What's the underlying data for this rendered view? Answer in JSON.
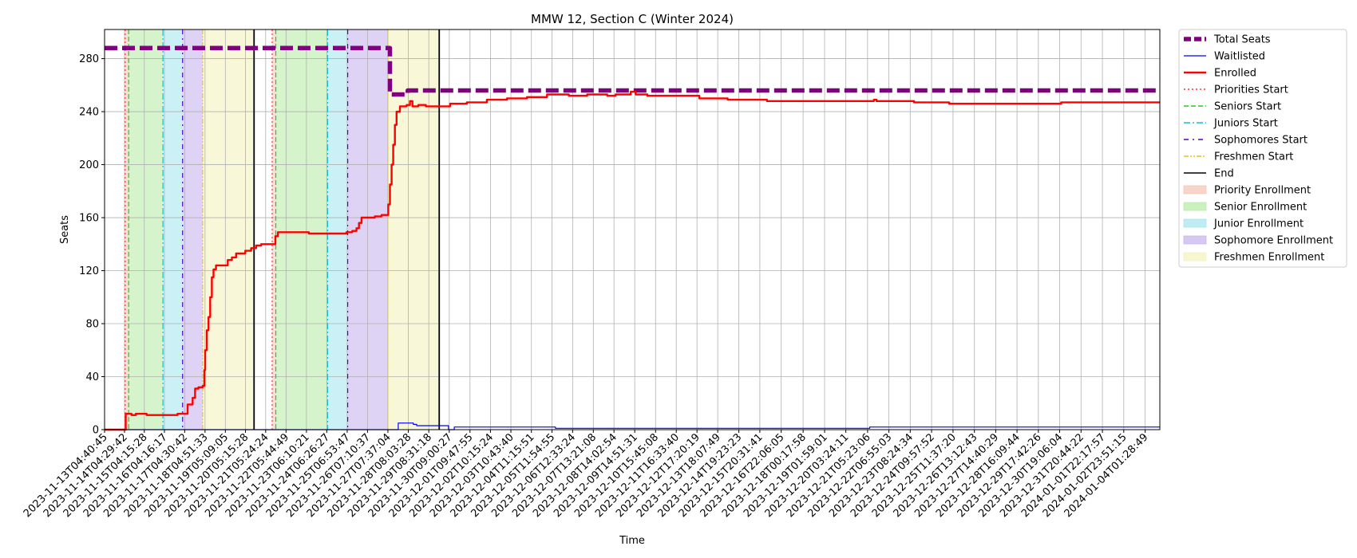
{
  "chart_data": {
    "type": "line",
    "title": "MMW 12, Section C (Winter 2024)",
    "xlabel": "Time",
    "ylabel": "Seats",
    "ylim": [
      0,
      302
    ],
    "yticks": [
      0,
      40,
      80,
      120,
      160,
      200,
      240,
      280
    ],
    "grid": true,
    "legend_position": "outside right, top",
    "x_start": "2023-11-13T04:40:45",
    "x_end": "2024-01-04T19:00:00",
    "xticks": [
      "2023-11-13T04:40:45",
      "2023-11-14T04:29:42",
      "2023-11-15T04:15:28",
      "2023-11-16T04:16:17",
      "2023-11-17T04:30:42",
      "2023-11-18T04:51:33",
      "2023-11-19T05:09:05",
      "2023-11-20T05:15:28",
      "2023-11-21T05:24:24",
      "2023-11-22T05:44:49",
      "2023-11-23T06:10:21",
      "2023-11-24T06:26:27",
      "2023-11-25T06:53:47",
      "2023-11-26T07:10:37",
      "2023-11-27T07:37:04",
      "2023-11-28T08:03:28",
      "2023-11-29T08:31:18",
      "2023-11-30T09:00:27",
      "2023-12-01T09:47:55",
      "2023-12-02T10:15:24",
      "2023-12-03T10:43:40",
      "2023-12-04T11:15:51",
      "2023-12-05T11:54:55",
      "2023-12-06T12:33:24",
      "2023-12-07T13:21:08",
      "2023-12-08T14:02:54",
      "2023-12-09T14:51:31",
      "2023-12-10T15:45:08",
      "2023-12-11T16:33:40",
      "2023-12-12T17:20:19",
      "2023-12-13T18:07:49",
      "2023-12-14T19:23:23",
      "2023-12-15T20:31:41",
      "2023-12-16T22:06:05",
      "2023-12-18T00:17:58",
      "2023-12-19T01:59:01",
      "2023-12-20T03:24:11",
      "2023-12-21T05:23:06",
      "2023-12-22T06:55:03",
      "2023-12-23T08:24:34",
      "2023-12-24T09:57:52",
      "2023-12-25T11:37:20",
      "2023-12-26T13:12:43",
      "2023-12-27T14:40:29",
      "2023-12-28T16:09:44",
      "2023-12-29T17:42:26",
      "2023-12-30T19:06:04",
      "2023-12-31T20:44:22",
      "2024-01-01T22:17:57",
      "2024-01-02T23:51:15",
      "2024-01-04T01:28:49"
    ],
    "enrollment_periods": [
      {
        "name": "Priority Enrollment",
        "color": "#f4c7b8",
        "start": "2023-11-14T05:20:00",
        "end": "2023-11-14T09:30:00"
      },
      {
        "name": "Senior Enrollment",
        "color": "#b9ecaa",
        "start": "2023-11-14T09:30:00",
        "end": "2023-11-16T02:30:00"
      },
      {
        "name": "Junior Enrollment",
        "color": "#a8e6ee",
        "start": "2023-11-16T02:30:00",
        "end": "2023-11-17T02:00:00"
      },
      {
        "name": "Sophomore Enrollment",
        "color": "#cab5ee",
        "start": "2023-11-17T02:00:00",
        "end": "2023-11-18T02:00:00"
      },
      {
        "name": "Freshmen Enrollment",
        "color": "#f3f3bf",
        "start": "2023-11-18T02:00:00",
        "end": "2023-11-20T15:30:00"
      },
      {
        "name": "Priority Enrollment",
        "color": "#f4c7b8",
        "start": "2023-11-21T13:10:00",
        "end": "2023-11-21T17:30:00"
      },
      {
        "name": "Senior Enrollment",
        "color": "#b9ecaa",
        "start": "2023-11-21T17:30:00",
        "end": "2023-11-24T07:30:00"
      },
      {
        "name": "Junior Enrollment",
        "color": "#a8e6ee",
        "start": "2023-11-24T07:30:00",
        "end": "2023-11-25T07:30:00"
      },
      {
        "name": "Sophomore Enrollment",
        "color": "#cab5ee",
        "start": "2023-11-25T07:30:00",
        "end": "2023-11-27T07:30:00"
      },
      {
        "name": "Freshmen Enrollment",
        "color": "#f3f3bf",
        "start": "2023-11-27T07:30:00",
        "end": "2023-11-29T21:00:00"
      }
    ],
    "markers": [
      {
        "kind": "priorities",
        "time": "2023-11-14T05:20:00"
      },
      {
        "kind": "seniors",
        "time": "2023-11-14T09:30:00"
      },
      {
        "kind": "juniors",
        "time": "2023-11-16T02:30:00"
      },
      {
        "kind": "sophomores",
        "time": "2023-11-17T02:00:00"
      },
      {
        "kind": "freshmen",
        "time": "2023-11-18T02:00:00"
      },
      {
        "kind": "end",
        "time": "2023-11-20T15:30:00"
      },
      {
        "kind": "priorities",
        "time": "2023-11-21T13:10:00"
      },
      {
        "kind": "seniors",
        "time": "2023-11-21T17:30:00"
      },
      {
        "kind": "juniors",
        "time": "2023-11-24T07:30:00"
      },
      {
        "kind": "sophomores",
        "time": "2023-11-25T07:30:00"
      },
      {
        "kind": "freshmen",
        "time": "2023-11-27T07:30:00"
      },
      {
        "kind": "end",
        "time": "2023-11-29T21:00:00"
      }
    ],
    "series": [
      {
        "name": "Total Seats",
        "key": "total",
        "color": "#800080",
        "style": "dashed-thick",
        "points": [
          [
            "2023-11-13T04:40:45",
            288
          ],
          [
            "2023-11-27T07:30:00",
            288
          ],
          [
            "2023-11-27T10:00:00",
            253
          ],
          [
            "2023-11-28T07:00:00",
            253
          ],
          [
            "2023-11-28T07:20:00",
            256
          ],
          [
            "2024-01-04T19:00:00",
            256
          ]
        ]
      },
      {
        "name": "Waitlisted",
        "key": "waitlisted",
        "color": "#0000ff",
        "style": "thin",
        "points": [
          [
            "2023-11-13T04:40:45",
            0
          ],
          [
            "2023-11-27T15:00:00",
            0
          ],
          [
            "2023-11-27T20:00:00",
            5
          ],
          [
            "2023-11-28T14:00:00",
            4
          ],
          [
            "2023-11-28T18:00:00",
            3
          ],
          [
            "2023-11-30T07:00:00",
            3
          ],
          [
            "2023-11-30T08:00:00",
            0
          ],
          [
            "2023-11-30T15:00:00",
            2
          ],
          [
            "2023-12-05T13:00:00",
            2
          ],
          [
            "2023-12-05T16:00:00",
            1
          ],
          [
            "2023-12-21T05:00:00",
            1
          ],
          [
            "2023-12-21T08:00:00",
            2
          ],
          [
            "2024-01-04T19:00:00",
            2
          ]
        ]
      },
      {
        "name": "Enrolled",
        "key": "enrolled",
        "color": "#ff0000",
        "style": "thick",
        "points": [
          [
            "2023-11-13T04:40:45",
            0
          ],
          [
            "2023-11-14T02:00:00",
            0
          ],
          [
            "2023-11-14T06:00:00",
            12
          ],
          [
            "2023-11-14T13:00:00",
            11
          ],
          [
            "2023-11-14T18:00:00",
            12
          ],
          [
            "2023-11-15T05:00:00",
            12
          ],
          [
            "2023-11-15T07:00:00",
            11
          ],
          [
            "2023-11-16T17:00:00",
            11
          ],
          [
            "2023-11-16T20:00:00",
            12
          ],
          [
            "2023-11-17T04:00:00",
            12
          ],
          [
            "2023-11-17T08:00:00",
            19
          ],
          [
            "2023-11-17T14:00:00",
            24
          ],
          [
            "2023-11-17T17:00:00",
            31
          ],
          [
            "2023-11-17T21:00:00",
            32
          ],
          [
            "2023-11-18T02:00:00",
            33
          ],
          [
            "2023-11-18T04:00:00",
            45
          ],
          [
            "2023-11-18T05:00:00",
            60
          ],
          [
            "2023-11-18T07:00:00",
            75
          ],
          [
            "2023-11-18T09:00:00",
            85
          ],
          [
            "2023-11-18T11:00:00",
            100
          ],
          [
            "2023-11-18T13:00:00",
            115
          ],
          [
            "2023-11-18T15:00:00",
            121
          ],
          [
            "2023-11-18T18:00:00",
            124
          ],
          [
            "2023-11-19T05:00:00",
            124
          ],
          [
            "2023-11-19T08:00:00",
            128
          ],
          [
            "2023-11-19T13:00:00",
            130
          ],
          [
            "2023-11-19T18:00:00",
            133
          ],
          [
            "2023-11-20T05:00:00",
            135
          ],
          [
            "2023-11-20T12:00:00",
            137
          ],
          [
            "2023-11-20T18:00:00",
            139
          ],
          [
            "2023-11-21T00:00:00",
            140
          ],
          [
            "2023-11-21T14:00:00",
            140
          ],
          [
            "2023-11-21T17:00:00",
            146
          ],
          [
            "2023-11-21T20:00:00",
            149
          ],
          [
            "2023-11-23T06:00:00",
            149
          ],
          [
            "2023-11-23T09:00:00",
            148
          ],
          [
            "2023-11-25T00:00:00",
            148
          ],
          [
            "2023-11-25T06:00:00",
            149
          ],
          [
            "2023-11-25T13:00:00",
            150
          ],
          [
            "2023-11-25T18:00:00",
            152
          ],
          [
            "2023-11-25T21:00:00",
            156
          ],
          [
            "2023-11-26T00:00:00",
            160
          ],
          [
            "2023-11-26T12:00:00",
            160
          ],
          [
            "2023-11-26T16:00:00",
            161
          ],
          [
            "2023-11-27T00:00:00",
            162
          ],
          [
            "2023-11-27T06:00:00",
            162
          ],
          [
            "2023-11-27T08:00:00",
            170
          ],
          [
            "2023-11-27T10:00:00",
            185
          ],
          [
            "2023-11-27T12:00:00",
            200
          ],
          [
            "2023-11-27T14:00:00",
            215
          ],
          [
            "2023-11-27T16:00:00",
            230
          ],
          [
            "2023-11-27T18:00:00",
            240
          ],
          [
            "2023-11-27T22:00:00",
            244
          ],
          [
            "2023-11-28T06:00:00",
            245
          ],
          [
            "2023-11-28T10:00:00",
            248
          ],
          [
            "2023-11-28T13:00:00",
            244
          ],
          [
            "2023-11-28T20:00:00",
            245
          ],
          [
            "2023-11-29T05:00:00",
            244
          ],
          [
            "2023-11-30T06:00:00",
            244
          ],
          [
            "2023-11-30T10:00:00",
            246
          ],
          [
            "2023-12-01T06:00:00",
            247
          ],
          [
            "2023-12-02T06:00:00",
            249
          ],
          [
            "2023-12-03T06:00:00",
            250
          ],
          [
            "2023-12-04T06:00:00",
            251
          ],
          [
            "2023-12-05T06:00:00",
            253
          ],
          [
            "2023-12-06T08:00:00",
            252
          ],
          [
            "2023-12-07T06:00:00",
            253
          ],
          [
            "2023-12-08T06:00:00",
            252
          ],
          [
            "2023-12-08T16:00:00",
            253
          ],
          [
            "2023-12-09T10:00:00",
            255
          ],
          [
            "2023-12-09T16:00:00",
            253
          ],
          [
            "2023-12-10T06:00:00",
            252
          ],
          [
            "2023-12-12T18:00:00",
            252
          ],
          [
            "2023-12-12T20:00:00",
            250
          ],
          [
            "2023-12-14T06:00:00",
            249
          ],
          [
            "2023-12-16T05:00:00",
            248
          ],
          [
            "2023-12-21T10:00:00",
            248
          ],
          [
            "2023-12-21T13:00:00",
            249
          ],
          [
            "2023-12-21T16:00:00",
            248
          ],
          [
            "2023-12-23T13:00:00",
            247
          ],
          [
            "2023-12-25T07:00:00",
            246
          ],
          [
            "2023-12-30T19:00:00",
            246
          ],
          [
            "2023-12-30T21:00:00",
            247
          ],
          [
            "2024-01-04T19:00:00",
            247
          ]
        ]
      }
    ],
    "legend": [
      {
        "label": "Total Seats",
        "kind": "line",
        "color": "#800080",
        "style": "dashed-thick"
      },
      {
        "label": "Waitlisted",
        "kind": "line",
        "color": "#0000ff",
        "style": "thin"
      },
      {
        "label": "Enrolled",
        "kind": "line",
        "color": "#ff0000",
        "style": "thick"
      },
      {
        "label": "Priorities Start",
        "kind": "line",
        "color": "#ff3333",
        "style": "dotted"
      },
      {
        "label": "Seniors Start",
        "kind": "line",
        "color": "#22cc22",
        "style": "dashed"
      },
      {
        "label": "Juniors Start",
        "kind": "line",
        "color": "#17becf",
        "style": "dashdot"
      },
      {
        "label": "Sophomores Start",
        "kind": "line",
        "color": "#5500cc",
        "style": "loosedash"
      },
      {
        "label": "Freshmen Start",
        "kind": "line",
        "color": "#e6c619",
        "style": "dashdotdot"
      },
      {
        "label": "End",
        "kind": "line",
        "color": "#000000",
        "style": "solid"
      },
      {
        "label": "Priority Enrollment",
        "kind": "patch",
        "color": "#f4c7b8"
      },
      {
        "label": "Senior Enrollment",
        "kind": "patch",
        "color": "#b9ecaa"
      },
      {
        "label": "Junior Enrollment",
        "kind": "patch",
        "color": "#a8e6ee"
      },
      {
        "label": "Sophomore Enrollment",
        "kind": "patch",
        "color": "#cab5ee"
      },
      {
        "label": "Freshmen Enrollment",
        "kind": "patch",
        "color": "#f3f3bf"
      }
    ]
  }
}
